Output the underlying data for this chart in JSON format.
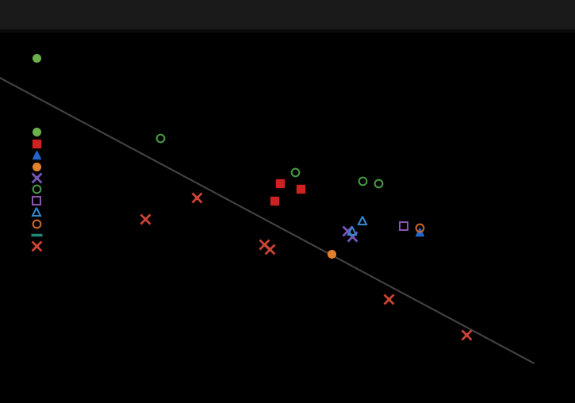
{
  "bg_color": "#000000",
  "fig_bg_color": "#0a0a0a",
  "header_color": "#1a1a1a",
  "line_color": "#444444",
  "series": [
    {
      "marker": "o",
      "color": "#6ab04c",
      "filled": true,
      "markersize": 7,
      "points": [
        [
          2.0,
          3.85
        ],
        [
          2.0,
          2.55
        ]
      ]
    },
    {
      "marker": "s",
      "color": "#cc2222",
      "filled": true,
      "markersize": 7,
      "points": [
        [
          2.0,
          2.35
        ],
        [
          4.35,
          1.65
        ],
        [
          4.55,
          1.55
        ],
        [
          4.3,
          1.35
        ]
      ]
    },
    {
      "marker": "^",
      "color": "#2266cc",
      "filled": true,
      "markersize": 7,
      "points": [
        [
          2.0,
          2.15
        ],
        [
          5.7,
          0.8
        ]
      ]
    },
    {
      "marker": "o",
      "color": "#e08030",
      "filled": true,
      "markersize": 7,
      "points": [
        [
          2.0,
          1.95
        ],
        [
          4.85,
          0.42
        ]
      ]
    },
    {
      "marker": "x",
      "color": "#7755bb",
      "filled": true,
      "markersize": 9,
      "markeredgewidth": 2,
      "points": [
        [
          2.0,
          1.75
        ],
        [
          5.0,
          0.82
        ],
        [
          5.05,
          0.72
        ]
      ]
    },
    {
      "marker": "o",
      "color": "#449944",
      "filled": false,
      "markersize": 7,
      "points": [
        [
          2.0,
          1.55
        ],
        [
          3.2,
          2.45
        ],
        [
          4.5,
          1.85
        ],
        [
          5.15,
          1.7
        ],
        [
          5.3,
          1.65
        ]
      ]
    },
    {
      "marker": "s",
      "color": "#8855aa",
      "filled": false,
      "markersize": 7,
      "points": [
        [
          2.0,
          1.35
        ],
        [
          5.55,
          0.9
        ]
      ]
    },
    {
      "marker": "^",
      "color": "#3388cc",
      "filled": false,
      "markersize": 7,
      "points": [
        [
          2.0,
          1.15
        ],
        [
          5.15,
          1.0
        ],
        [
          5.05,
          0.82
        ]
      ]
    },
    {
      "marker": "o",
      "color": "#cc6622",
      "filled": false,
      "markersize": 7,
      "points": [
        [
          2.0,
          0.95
        ],
        [
          5.7,
          0.88
        ]
      ]
    },
    {
      "marker": "_",
      "color": "#228877",
      "filled": true,
      "markersize": 10,
      "markeredgewidth": 2.5,
      "points": [
        [
          2.0,
          0.75
        ]
      ]
    },
    {
      "marker": "x",
      "color": "#cc4433",
      "filled": true,
      "markersize": 9,
      "markeredgewidth": 2,
      "points": [
        [
          2.0,
          0.55
        ],
        [
          3.55,
          1.4
        ],
        [
          3.05,
          1.02
        ],
        [
          4.2,
          0.58
        ],
        [
          4.25,
          0.5
        ],
        [
          5.4,
          -0.38
        ],
        [
          6.15,
          -1.0
        ]
      ]
    }
  ],
  "line_x": [
    1.65,
    6.8
  ],
  "line_y": [
    3.5,
    -1.5
  ],
  "xlim": [
    1.65,
    7.2
  ],
  "ylim": [
    -2.2,
    4.3
  ]
}
